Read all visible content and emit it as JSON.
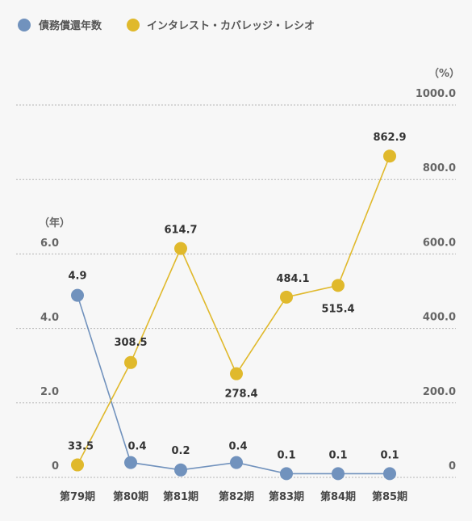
{
  "chart_data": {
    "type": "line",
    "categories": [
      "第79期",
      "第80期",
      "第81期",
      "第82期",
      "第83期",
      "第84期",
      "第85期"
    ],
    "series": [
      {
        "name": "債務償還年数",
        "axis": "left",
        "color": "#7192bd",
        "values": [
          4.9,
          0.4,
          0.2,
          0.4,
          0.1,
          0.1,
          0.1
        ]
      },
      {
        "name": "インタレスト・カバレッジ・レシオ",
        "axis": "right",
        "color": "#e0b92c",
        "values": [
          33.5,
          308.5,
          614.7,
          278.4,
          484.1,
          515.4,
          862.9
        ]
      }
    ],
    "left_axis": {
      "unit": "（年）",
      "min": 0,
      "max": 6,
      "ticks": [
        "0",
        "2.0",
        "4.0",
        "6.0"
      ]
    },
    "right_axis": {
      "unit": "（%）",
      "min": 0,
      "max": 1000,
      "ticks": [
        "0",
        "200.0",
        "400.0",
        "600.0",
        "800.0",
        "1000.0"
      ]
    },
    "legend_position": "top-left",
    "grid": "dashed-horizontal"
  }
}
